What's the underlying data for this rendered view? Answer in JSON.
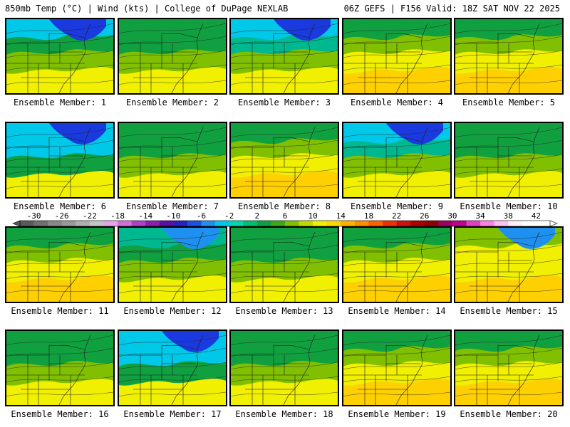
{
  "header": {
    "left": "850mb Temp (°C) | Wind (kts) | College of DuPage NEXLAB",
    "right": "06Z GEFS | F156 Valid: 18Z SAT NOV 22 2025"
  },
  "members": [
    {
      "label": "Ensemble Member: 1",
      "pattern": "cold-north"
    },
    {
      "label": "Ensemble Member: 2",
      "pattern": "mild"
    },
    {
      "label": "Ensemble Member: 3",
      "pattern": "cold-northeast"
    },
    {
      "label": "Ensemble Member: 4",
      "pattern": "warm"
    },
    {
      "label": "Ensemble Member: 5",
      "pattern": "warm"
    },
    {
      "label": "Ensemble Member: 6",
      "pattern": "very-cold"
    },
    {
      "label": "Ensemble Member: 7",
      "pattern": "mild"
    },
    {
      "label": "Ensemble Member: 8",
      "pattern": "warm"
    },
    {
      "label": "Ensemble Member: 9",
      "pattern": "cold-northeast"
    },
    {
      "label": "Ensemble Member: 10",
      "pattern": "mild"
    },
    {
      "label": "Ensemble Member: 11",
      "pattern": "warm"
    },
    {
      "label": "Ensemble Member: 12",
      "pattern": "mild-cold-ne"
    },
    {
      "label": "Ensemble Member: 13",
      "pattern": "mild"
    },
    {
      "label": "Ensemble Member: 14",
      "pattern": "warm"
    },
    {
      "label": "Ensemble Member: 15",
      "pattern": "warm-cold-ne"
    },
    {
      "label": "Ensemble Member: 16",
      "pattern": "mild"
    },
    {
      "label": "Ensemble Member: 17",
      "pattern": "very-cold"
    },
    {
      "label": "Ensemble Member: 18",
      "pattern": "mild"
    },
    {
      "label": "Ensemble Member: 19",
      "pattern": "warm"
    },
    {
      "label": "Ensemble Member: 20",
      "pattern": "warm"
    }
  ],
  "colorbar": {
    "unit": "°C",
    "min": -32,
    "max": 44,
    "step": 2,
    "tick_labels": [
      "-30",
      "-26",
      "-22",
      "-18",
      "-14",
      "-10",
      "-6",
      "-2",
      "2",
      "6",
      "10",
      "14",
      "18",
      "22",
      "26",
      "30",
      "34",
      "38",
      "42"
    ],
    "colors": [
      "#5a5a5a",
      "#707070",
      "#888888",
      "#9a9a9a",
      "#b0b0b0",
      "#c6c6c6",
      "#e6a6e6",
      "#d070d8",
      "#b040c8",
      "#8a20b0",
      "#5a10a0",
      "#2a20c0",
      "#1e50e0",
      "#1e90f0",
      "#00c8e8",
      "#00d8b0",
      "#00c070",
      "#10a040",
      "#40a818",
      "#80c000",
      "#c0d800",
      "#f0f000",
      "#ffd800",
      "#ffb000",
      "#ff8c00",
      "#ff6000",
      "#f03000",
      "#d01010",
      "#b00000",
      "#900000",
      "#a00060",
      "#c00090",
      "#e040c0",
      "#ff80e0",
      "#ffc0f0",
      "#fff0fa",
      "#ffffff",
      "#ffffff"
    ]
  },
  "colors": {
    "cold_deep": "#1a3adf",
    "cold": "#1e90f0",
    "cool": "#00c8e8",
    "teal": "#00b890",
    "green": "#10a040",
    "yellowgreen": "#80c000",
    "yellow": "#f0f000",
    "gold": "#ffd000"
  }
}
